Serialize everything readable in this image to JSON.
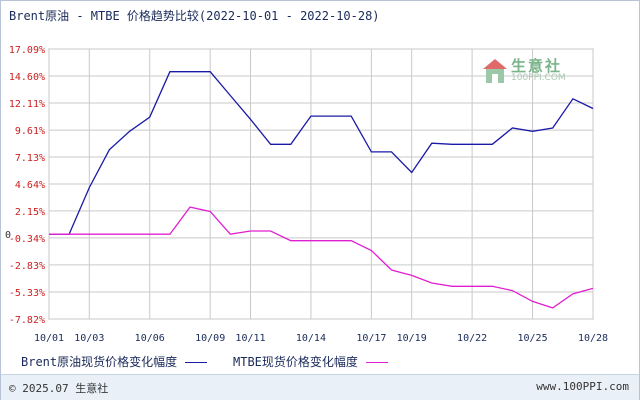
{
  "title": "Brent原油 - MTBE 价格趋势比较(2022-10-01 - 2022-10-28)",
  "watermark": {
    "name": "生意社",
    "url": "100PPI.COM"
  },
  "footer": {
    "copyright": "© 2025.07 生意社",
    "site": "www.100PPI.com"
  },
  "colors": {
    "brent": "#1a1aa6",
    "mtbe": "#e020d0",
    "axis_label": "#cc2020",
    "grid": "#c9c9c9"
  },
  "chart_data": {
    "type": "line",
    "title": "Brent原油 - MTBE 价格趋势比较(2022-10-01 - 2022-10-28)",
    "y_ticks": [
      "17.09%",
      "14.60%",
      "12.11%",
      "9.61%",
      "7.13%",
      "4.64%",
      "2.15%",
      "-0.34%",
      "-2.83%",
      "-5.33%",
      "-7.82%"
    ],
    "y_tick_values": [
      17.09,
      14.6,
      12.11,
      9.61,
      7.13,
      4.64,
      2.15,
      -0.34,
      -2.83,
      -5.33,
      -7.82
    ],
    "ylim": [
      -7.82,
      17.09
    ],
    "zero_label": "0",
    "x_ticks": [
      "10/01",
      "10/03",
      "10/06",
      "10/09",
      "10/11",
      "10/14",
      "10/17",
      "10/19",
      "10/22",
      "10/25",
      "10/28"
    ],
    "x_tick_days": [
      1,
      3,
      6,
      9,
      11,
      14,
      17,
      19,
      22,
      25,
      28
    ],
    "xlim": [
      1,
      28
    ],
    "legend_position": "bottom",
    "series": [
      {
        "name": "Brent原油现货价格变化幅度",
        "x": [
          1,
          2,
          3,
          4,
          5,
          6,
          7,
          8,
          9,
          10,
          11,
          12,
          13,
          14,
          15,
          16,
          17,
          18,
          19,
          20,
          21,
          22,
          23,
          24,
          25,
          26,
          27,
          28
        ],
        "values": [
          0,
          0,
          4.3,
          7.8,
          9.5,
          10.8,
          15.0,
          15.0,
          15.0,
          12.8,
          10.6,
          8.3,
          8.3,
          10.9,
          10.9,
          10.9,
          7.6,
          7.6,
          5.7,
          8.4,
          8.3,
          8.3,
          8.3,
          9.8,
          9.5,
          9.8,
          12.5,
          11.6
        ]
      },
      {
        "name": "MTBE现货价格变化幅度",
        "x": [
          1,
          2,
          3,
          4,
          5,
          6,
          7,
          8,
          9,
          10,
          11,
          12,
          13,
          14,
          15,
          16,
          17,
          18,
          19,
          20,
          21,
          22,
          23,
          24,
          25,
          26,
          27,
          28
        ],
        "values": [
          0,
          0,
          0,
          0,
          0,
          0,
          0,
          2.5,
          2.1,
          0,
          0.3,
          0.3,
          -0.6,
          -0.6,
          -0.6,
          -0.6,
          -1.5,
          -3.3,
          -3.8,
          -4.5,
          -4.8,
          -4.8,
          -4.8,
          -5.2,
          -6.2,
          -6.8,
          -5.5,
          -5.0
        ]
      }
    ]
  }
}
